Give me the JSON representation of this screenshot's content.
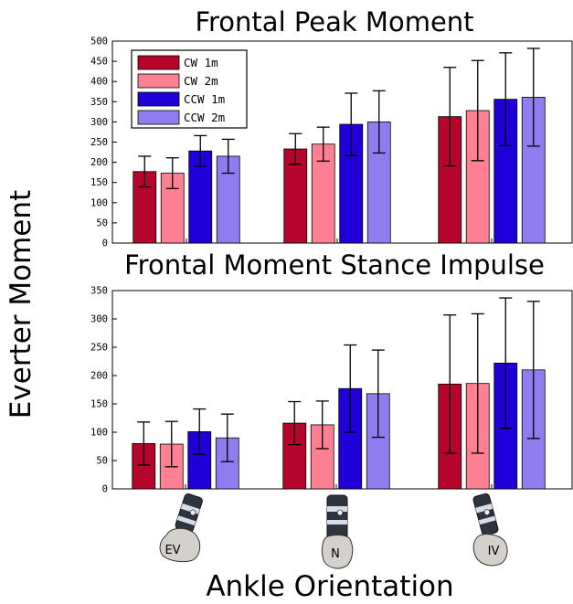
{
  "figure": {
    "y_label": "Everter Moment",
    "x_label": "Ankle Orientation",
    "legend": [
      {
        "label": "CW 1m",
        "color": "#B5052A"
      },
      {
        "label": "CW 2m",
        "color": "#FF8093"
      },
      {
        "label": "CCW 1m",
        "color": "#2000D8"
      },
      {
        "label": "CCW 2m",
        "color": "#8F7DF0"
      }
    ],
    "categories": [
      "EV",
      "N",
      "IV"
    ],
    "foot_icon_names": [
      "foot-ev-icon",
      "foot-n-icon",
      "foot-iv-icon"
    ]
  },
  "chart_data": [
    {
      "type": "bar",
      "title": "Frontal Peak Moment",
      "categories": [
        "EV",
        "N",
        "IV"
      ],
      "ylim": [
        0,
        500
      ],
      "yticks": [
        0,
        50,
        100,
        150,
        200,
        250,
        300,
        350,
        400,
        450,
        500
      ],
      "grid": false,
      "legend_position": "top-left",
      "series": [
        {
          "name": "CW 1m",
          "color": "#B5052A",
          "values": [
            177,
            233,
            313
          ],
          "errors": [
            38,
            38,
            122
          ]
        },
        {
          "name": "CW 2m",
          "color": "#FF8093",
          "values": [
            173,
            245,
            328
          ],
          "errors": [
            38,
            42,
            124
          ]
        },
        {
          "name": "CCW 1m",
          "color": "#2000D8",
          "values": [
            228,
            294,
            356
          ],
          "errors": [
            38,
            77,
            115
          ]
        },
        {
          "name": "CCW 2m",
          "color": "#8F7DF0",
          "values": [
            215,
            300,
            361
          ],
          "errors": [
            42,
            77,
            121
          ]
        }
      ]
    },
    {
      "type": "bar",
      "title": "Frontal Moment Stance Impulse",
      "categories": [
        "EV",
        "N",
        "IV"
      ],
      "ylim": [
        0,
        350
      ],
      "yticks": [
        0,
        50,
        100,
        150,
        200,
        250,
        300,
        350
      ],
      "grid": false,
      "series": [
        {
          "name": "CW 1m",
          "color": "#B5052A",
          "values": [
            80,
            116,
            185
          ],
          "errors": [
            38,
            38,
            122
          ]
        },
        {
          "name": "CW 2m",
          "color": "#FF8093",
          "values": [
            79,
            113,
            186
          ],
          "errors": [
            40,
            42,
            123
          ]
        },
        {
          "name": "CCW 1m",
          "color": "#2000D8",
          "values": [
            101,
            177,
            222
          ],
          "errors": [
            40,
            77,
            115
          ]
        },
        {
          "name": "CCW 2m",
          "color": "#8F7DF0",
          "values": [
            90,
            168,
            210
          ],
          "errors": [
            42,
            77,
            121
          ]
        }
      ]
    }
  ]
}
